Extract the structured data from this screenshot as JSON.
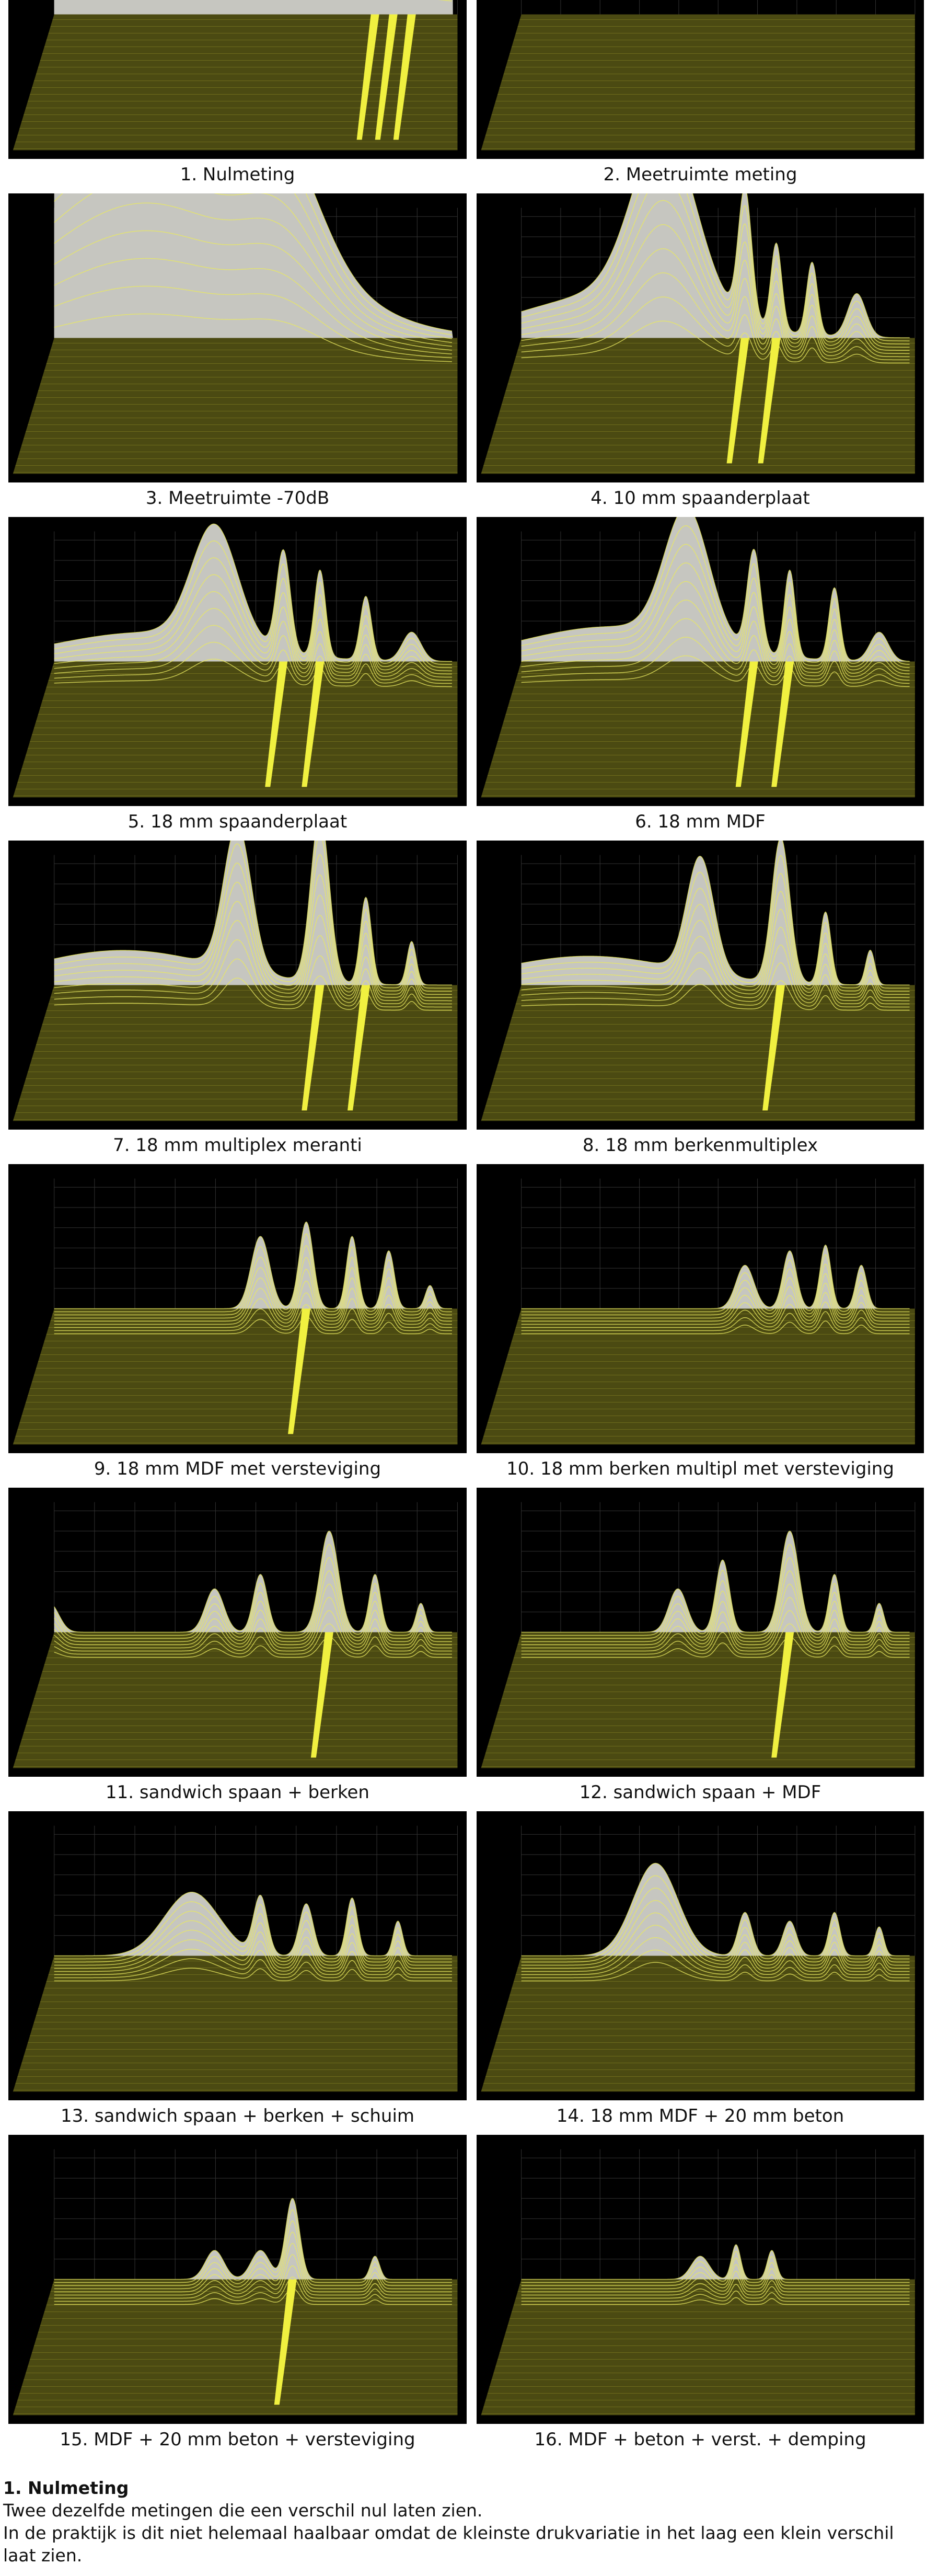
{
  "captions": [
    "1. Nulmeting",
    "2. Meetruimte meting",
    "3. Meetruimte -70dB",
    "4. 10 mm spaanderplaat",
    "5. 18 mm spaanderplaat",
    "6. 18 mm MDF",
    "7. 18 mm multiplex meranti",
    "8. 18 mm berkenmultiplex",
    "9. 18 mm MDF met versteviging",
    "10. 18 mm berken multipl met versteviging",
    "11. sandwich spaan +  berken",
    "12. sandwich spaan + MDF",
    "13. sandwich spaan + berken + schuim",
    "14. 18 mm MDF + 20 mm beton",
    "15. MDF + 20 mm beton + versteviging",
    "16. MDF + beton + verst. + demping"
  ],
  "section": {
    "title": "1. Nulmeting",
    "paragraphs": [
      "Twee dezelfde metingen die een verschil nul laten zien.",
      "In de praktijk is dit niet helemaal haalbaar omdat de kleinste drukvariatie in het laag een klein verschil laat zien."
    ]
  }
}
